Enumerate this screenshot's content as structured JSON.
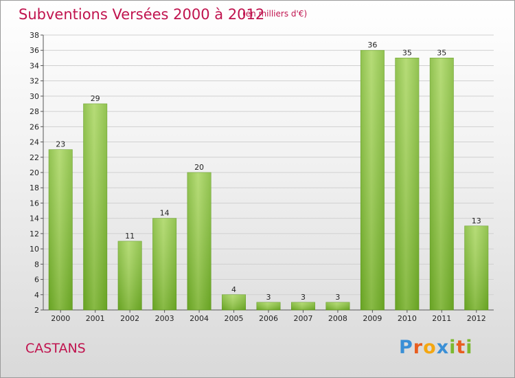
{
  "chart_data": {
    "type": "bar",
    "title": "Subventions Versées 2000 à 2012",
    "subtitle": "(en milliers d'€)",
    "categories": [
      "2000",
      "2001",
      "2002",
      "2003",
      "2004",
      "2005",
      "2006",
      "2007",
      "2008",
      "2009",
      "2010",
      "2011",
      "2012"
    ],
    "values": [
      23,
      29,
      11,
      14,
      20,
      4,
      3,
      3,
      3,
      36,
      35,
      35,
      13
    ],
    "ylim": [
      2,
      38
    ],
    "yticks": [
      2,
      4,
      6,
      8,
      10,
      12,
      14,
      16,
      18,
      20,
      22,
      24,
      26,
      28,
      30,
      32,
      34,
      36,
      38
    ],
    "grid": true,
    "bar_color": "#7ab52c",
    "bar_highlight": "#a6d45a"
  },
  "commune": "CASTANS",
  "logo": {
    "p": "P",
    "r": "r",
    "o": "o",
    "x": "x",
    "i1": "i",
    "t": "t",
    "i2": "i"
  },
  "colors": {
    "title": "#c0134e",
    "grid": "#d0d0d0"
  }
}
